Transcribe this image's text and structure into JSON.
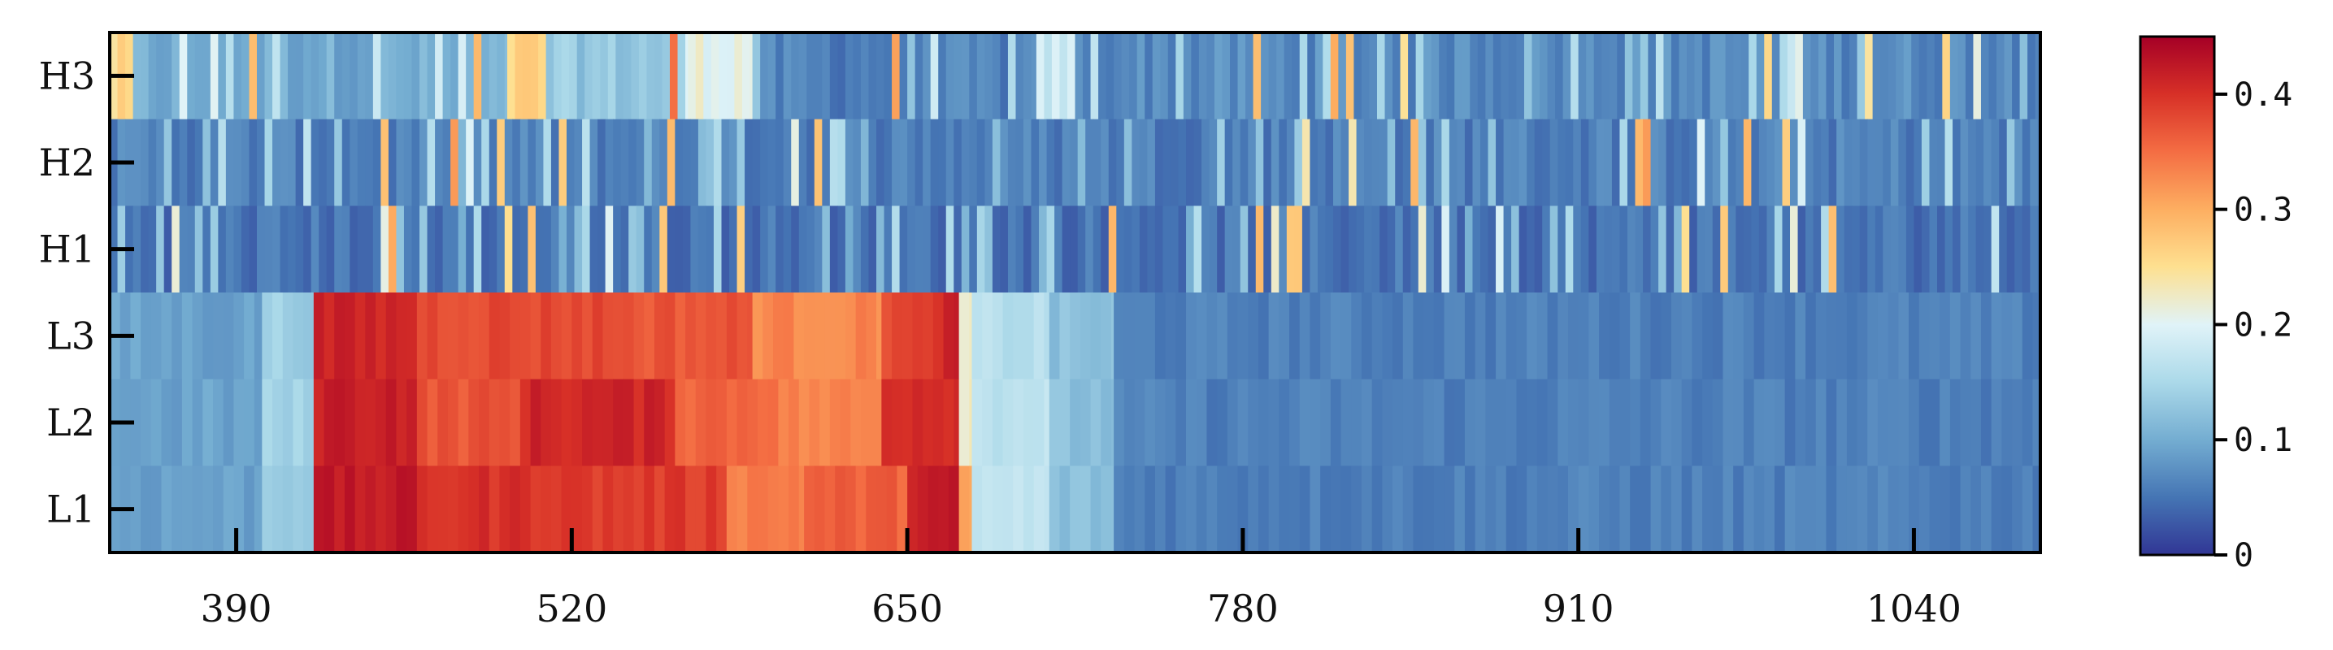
{
  "chart_data": {
    "type": "heatmap",
    "title": "",
    "xlabel": "",
    "ylabel": "",
    "xlim": [
      341,
      1089
    ],
    "x_ticks": [
      390,
      520,
      650,
      780,
      910,
      1040
    ],
    "rows": [
      "H3",
      "H2",
      "H1",
      "L3",
      "L2",
      "L1"
    ],
    "colorbar": {
      "range": [
        0,
        0.45
      ],
      "ticks": [
        0,
        0.1,
        0.2,
        0.3,
        0.4
      ],
      "tick_labels": [
        "0",
        "0.1",
        "0.2",
        "0.3",
        "0.4"
      ],
      "colormap": [
        "#313695",
        "#4575b4",
        "#74add1",
        "#abd9e9",
        "#e0f3f8",
        "#fee090",
        "#fdae61",
        "#f46d43",
        "#d73027",
        "#a50026"
      ]
    },
    "segments": {
      "L3": [
        [
          341,
          400,
          0.09
        ],
        [
          400,
          420,
          0.14
        ],
        [
          420,
          460,
          0.41
        ],
        [
          460,
          540,
          0.38
        ],
        [
          540,
          590,
          0.37
        ],
        [
          590,
          640,
          0.33
        ],
        [
          640,
          660,
          0.38
        ],
        [
          660,
          670,
          0.41
        ],
        [
          670,
          675,
          0.22
        ],
        [
          675,
          705,
          0.16
        ],
        [
          705,
          730,
          0.12
        ],
        [
          730,
          1089,
          0.06
        ]
      ],
      "L2": [
        [
          341,
          400,
          0.09
        ],
        [
          400,
          420,
          0.14
        ],
        [
          420,
          460,
          0.42
        ],
        [
          460,
          500,
          0.37
        ],
        [
          500,
          560,
          0.41
        ],
        [
          560,
          600,
          0.36
        ],
        [
          600,
          640,
          0.33
        ],
        [
          640,
          670,
          0.41
        ],
        [
          670,
          675,
          0.23
        ],
        [
          675,
          705,
          0.17
        ],
        [
          705,
          730,
          0.12
        ],
        [
          730,
          1089,
          0.06
        ]
      ],
      "L1": [
        [
          341,
          400,
          0.09
        ],
        [
          400,
          420,
          0.14
        ],
        [
          420,
          460,
          0.42
        ],
        [
          460,
          520,
          0.4
        ],
        [
          520,
          580,
          0.39
        ],
        [
          580,
          610,
          0.34
        ],
        [
          610,
          650,
          0.36
        ],
        [
          650,
          670,
          0.42
        ],
        [
          670,
          675,
          0.3
        ],
        [
          675,
          705,
          0.17
        ],
        [
          705,
          730,
          0.12
        ],
        [
          730,
          1089,
          0.06
        ]
      ],
      "H3": [
        [
          341,
          350,
          0.25
        ],
        [
          350,
          495,
          0.1
        ],
        [
          495,
          510,
          0.26
        ],
        [
          510,
          565,
          0.13
        ],
        [
          565,
          590,
          0.21
        ],
        [
          590,
          700,
          0.06
        ],
        [
          700,
          715,
          0.18
        ],
        [
          715,
          1089,
          0.07
        ]
      ],
      "H2": [
        [
          341,
          1089,
          0.06
        ]
      ],
      "H1": [
        [
          341,
          1089,
          0.05
        ]
      ]
    }
  }
}
